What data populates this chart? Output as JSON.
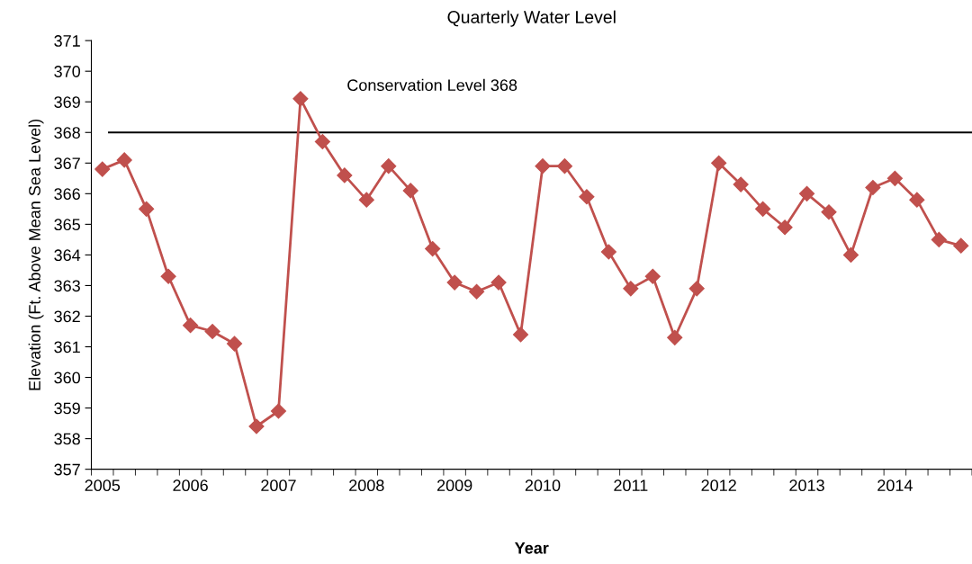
{
  "chart_data": {
    "type": "line",
    "title": "Quarterly Water Level",
    "xlabel": "Year",
    "ylabel": "Elevation (Ft. Above Mean Sea Level)",
    "categories": [
      "2005",
      null,
      null,
      null,
      "2006",
      null,
      null,
      null,
      "2007",
      null,
      null,
      null,
      "2008",
      null,
      null,
      null,
      "2009",
      null,
      null,
      null,
      "2010",
      null,
      null,
      null,
      "2011",
      null,
      null,
      null,
      "2012",
      null,
      null,
      null,
      "2013",
      null,
      null,
      null,
      "2014",
      null,
      null,
      null
    ],
    "series": [
      {
        "color": "#c0504d",
        "values": [
          366.8,
          367.1,
          365.5,
          363.3,
          361.7,
          361.5,
          361.1,
          358.4,
          358.9,
          369.1,
          367.7,
          366.6,
          365.8,
          366.9,
          366.1,
          364.2,
          363.1,
          362.8,
          363.1,
          361.4,
          366.9,
          366.9,
          365.9,
          364.1,
          362.9,
          363.3,
          361.3,
          362.9,
          367.0,
          366.3,
          365.5,
          364.9,
          366.0,
          365.4,
          364.0,
          366.2,
          366.5,
          365.8,
          364.5,
          364.3
        ]
      }
    ],
    "ylim": [
      357,
      371
    ],
    "yticks": [
      357,
      358,
      359,
      360,
      361,
      362,
      363,
      364,
      365,
      366,
      367,
      368,
      369,
      370,
      371
    ],
    "ref_lines": [
      {
        "axis": "y",
        "value": 368,
        "label": "Conservation Level 368",
        "color": "#000000",
        "line_style": "solid"
      }
    ],
    "marker": "diamond",
    "line_style": "solid",
    "grid": false,
    "legend": false
  }
}
